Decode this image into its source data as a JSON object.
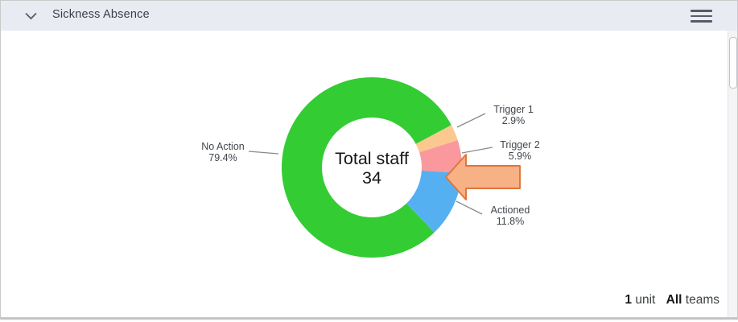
{
  "header": {
    "title": "Sickness Absence",
    "collapse_icon": "chevron-down",
    "menu_icon": "hamburger-menu"
  },
  "chart_data": {
    "type": "pie",
    "donut": true,
    "start_angle_deg": 136.1,
    "legend_position": "outside-labels",
    "center_label": {
      "line1": "Total staff",
      "line2": "34"
    },
    "total_staff": 34,
    "slices": [
      {
        "label": "No Action",
        "value": 79.4,
        "display": "79.4%",
        "color": "#33cc33"
      },
      {
        "label": "Trigger 1",
        "value": 2.9,
        "display": "2.9%",
        "color": "#fbc88f"
      },
      {
        "label": "Trigger 2",
        "value": 5.9,
        "display": "5.9%",
        "color": "#fa999d"
      },
      {
        "label": "Actioned",
        "value": 11.8,
        "display": "11.8%",
        "color": "#55b0f2"
      }
    ],
    "label_color": "#41454d",
    "leader_line_color": "#8a8a8a",
    "center_text_color": "#151515"
  },
  "annotation": {
    "shape": "left-block-arrow",
    "points_at": "Trigger 2",
    "fill": "#f6b185",
    "stroke": "#e0763c"
  },
  "footer": {
    "unit_count": "1",
    "unit_label": "unit",
    "teams_count": "All",
    "teams_label": "teams"
  }
}
